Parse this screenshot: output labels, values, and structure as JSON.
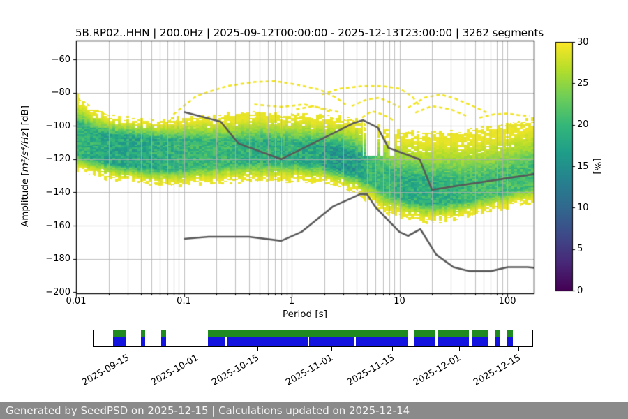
{
  "chart_data": {
    "type": "heatmap",
    "title": "5B.RP02..HHN | 200.0Hz | 2025-09-12T00:00:00 - 2025-12-13T23:00:00 | 3262 segments",
    "xlabel": "Period [s]",
    "ylabel_prefix": "Amplitude [",
    "ylabel_math": "m²/s⁴/Hz",
    "ylabel_suffix": "] [dB]",
    "xscale": "log",
    "xlim": [
      0.01,
      176
    ],
    "ylim": [
      -200.8,
      -48.5
    ],
    "grid": true,
    "x_ticks": [
      0.01,
      0.1,
      1,
      10,
      100
    ],
    "x_tick_labels": [
      "0.01",
      "0.1",
      "1",
      "10",
      "100"
    ],
    "y_ticks": [
      -60,
      -80,
      -100,
      -120,
      -140,
      -160,
      -180,
      -200
    ],
    "y_tick_labels": [
      "−60",
      "−80",
      "−100",
      "−120",
      "−140",
      "−160",
      "−180",
      "−200"
    ],
    "grid_color": "#b0b0b0",
    "colorbar": {
      "label": "[%]",
      "min": 0,
      "max": 30,
      "ticks": [
        0,
        5,
        10,
        15,
        20,
        25,
        30
      ],
      "tick_labels": [
        "0",
        "5",
        "10",
        "15",
        "20",
        "25",
        "30"
      ],
      "viridis_stops": [
        "#440154",
        "#482878",
        "#3e4a89",
        "#31688e",
        "#26828e",
        "#1f9e89",
        "#35b779",
        "#6ece58",
        "#b5de2b",
        "#fde725"
      ]
    },
    "density_band": [
      [
        0.01,
        -80,
        -98,
        -118,
        -126,
        10
      ],
      [
        0.014,
        -90,
        -103,
        -120,
        -130,
        11
      ],
      [
        0.02,
        -94,
        -105,
        -122,
        -132,
        12
      ],
      [
        0.04,
        -96,
        -107,
        -125,
        -134,
        12
      ],
      [
        0.07,
        -96,
        -108,
        -126,
        -136,
        11
      ],
      [
        0.12,
        -94,
        -108,
        -125,
        -135,
        10
      ],
      [
        0.25,
        -93,
        -109,
        -123,
        -134,
        10
      ],
      [
        0.5,
        -92,
        -109,
        -122,
        -133,
        11
      ],
      [
        1.0,
        -93,
        -110,
        -122,
        -133,
        11
      ],
      [
        1.8,
        -94,
        -112,
        -123,
        -134,
        12
      ],
      [
        2.8,
        -95,
        -114,
        -126,
        -136,
        14
      ],
      [
        4.0,
        -96,
        -117,
        -129,
        -140,
        13
      ],
      [
        5.5,
        -98,
        -121,
        -134,
        -147,
        10
      ],
      [
        8.0,
        -101,
        -127,
        -141,
        -153,
        10
      ],
      [
        12.0,
        -103,
        -131,
        -145,
        -156,
        11
      ],
      [
        20.0,
        -104,
        -133,
        -147,
        -158,
        11
      ],
      [
        35.0,
        -103,
        -132,
        -146,
        -156,
        10
      ],
      [
        60.0,
        -101,
        -130,
        -143,
        -152,
        9
      ],
      [
        100.0,
        -98,
        -127,
        -140,
        -149,
        9
      ],
      [
        176.0,
        -95,
        -123,
        -136,
        -146,
        9
      ]
    ],
    "noise_models": {
      "color": "#595959",
      "nhnm": [
        [
          0.1,
          -91.5
        ],
        [
          0.22,
          -97.4
        ],
        [
          0.32,
          -110.5
        ],
        [
          0.8,
          -120.0
        ],
        [
          3.8,
          -98.1
        ],
        [
          4.6,
          -96.5
        ],
        [
          6.3,
          -101.0
        ],
        [
          7.9,
          -113.2
        ],
        [
          15.4,
          -120.1
        ],
        [
          20.0,
          -138.4
        ],
        [
          176,
          -129.0
        ]
      ],
      "nlnm": [
        [
          0.1,
          -168.0
        ],
        [
          0.17,
          -166.7
        ],
        [
          0.4,
          -166.7
        ],
        [
          0.8,
          -169.2
        ],
        [
          1.24,
          -163.7
        ],
        [
          2.4,
          -148.6
        ],
        [
          4.3,
          -141.1
        ],
        [
          5.0,
          -141.1
        ],
        [
          6.0,
          -149.0
        ],
        [
          10.0,
          -163.8
        ],
        [
          12.0,
          -166.2
        ],
        [
          15.6,
          -162.1
        ],
        [
          21.9,
          -177.5
        ],
        [
          31.6,
          -185.0
        ],
        [
          45.0,
          -187.5
        ],
        [
          70.0,
          -187.5
        ],
        [
          101.0,
          -185.0
        ],
        [
          154.0,
          -185.0
        ],
        [
          176,
          -185.4
        ]
      ]
    },
    "event_arcs": {
      "color": "#f2e41f",
      "lines": [
        [
          [
            0.08,
            -93
          ],
          [
            0.13,
            -82
          ],
          [
            0.25,
            -76
          ],
          [
            0.45,
            -73.5
          ],
          [
            0.7,
            -73
          ],
          [
            1.1,
            -75
          ],
          [
            1.8,
            -78
          ],
          [
            2.6,
            -83
          ],
          [
            3.3,
            -88
          ]
        ],
        [
          [
            0.45,
            -87
          ],
          [
            0.8,
            -88.5
          ],
          [
            1.3,
            -87
          ],
          [
            2.0,
            -89.5
          ],
          [
            2.9,
            -92
          ]
        ],
        [
          [
            1.9,
            -81
          ],
          [
            2.8,
            -77.5
          ],
          [
            4.5,
            -76
          ],
          [
            7,
            -76
          ],
          [
            10,
            -77.5
          ],
          [
            13,
            -82
          ],
          [
            15,
            -87
          ]
        ],
        [
          [
            3.6,
            -88
          ],
          [
            5,
            -84
          ],
          [
            6.5,
            -83
          ],
          [
            8,
            -85.5
          ],
          [
            10,
            -88.5
          ]
        ],
        [
          [
            12,
            -89
          ],
          [
            17,
            -83
          ],
          [
            24,
            -81
          ],
          [
            33,
            -83.5
          ],
          [
            48,
            -88
          ],
          [
            65,
            -92
          ]
        ],
        [
          [
            55,
            -95
          ],
          [
            75,
            -93
          ],
          [
            100,
            -92.5
          ],
          [
            130,
            -93.5
          ],
          [
            160,
            -94
          ]
        ],
        [
          [
            14,
            -92
          ],
          [
            20,
            -88
          ],
          [
            30,
            -90
          ],
          [
            42,
            -94
          ]
        ],
        [
          [
            4.5,
            -95
          ],
          [
            5.5,
            -91
          ],
          [
            7,
            -93
          ],
          [
            9,
            -97
          ]
        ],
        [
          [
            1.1,
            -90
          ],
          [
            1.6,
            -88
          ],
          [
            2.3,
            -91.5
          ]
        ]
      ]
    }
  },
  "timeline": {
    "green_color": "#1f8a1f",
    "blue_color": "#1414e0",
    "segments": [
      [
        0.044,
        0.075
      ],
      [
        0.108,
        0.117
      ],
      [
        0.154,
        0.166
      ],
      [
        0.261,
        0.716
      ],
      [
        0.732,
        0.779
      ],
      [
        0.784,
        0.856
      ],
      [
        0.862,
        0.9
      ],
      [
        0.914,
        0.926
      ],
      [
        0.941,
        0.955
      ]
    ],
    "blue_gaps": [
      0.3,
      0.488,
      0.594
    ],
    "ticks": [
      {
        "label": "2025-09-15",
        "f": 0.079
      },
      {
        "label": "2025-10-01",
        "f": 0.236
      },
      {
        "label": "2025-10-15",
        "f": 0.374
      },
      {
        "label": "2025-11-01",
        "f": 0.542
      },
      {
        "label": "2025-11-15",
        "f": 0.68
      },
      {
        "label": "2025-12-01",
        "f": 0.832
      },
      {
        "label": "2025-12-15",
        "f": 0.967
      }
    ]
  },
  "footer": {
    "text": "Generated by SeedPSD on 2025-12-15 | Calculations updated on 2025-12-14",
    "bg": "#8a8a8a",
    "fg": "#f5f5f5"
  }
}
